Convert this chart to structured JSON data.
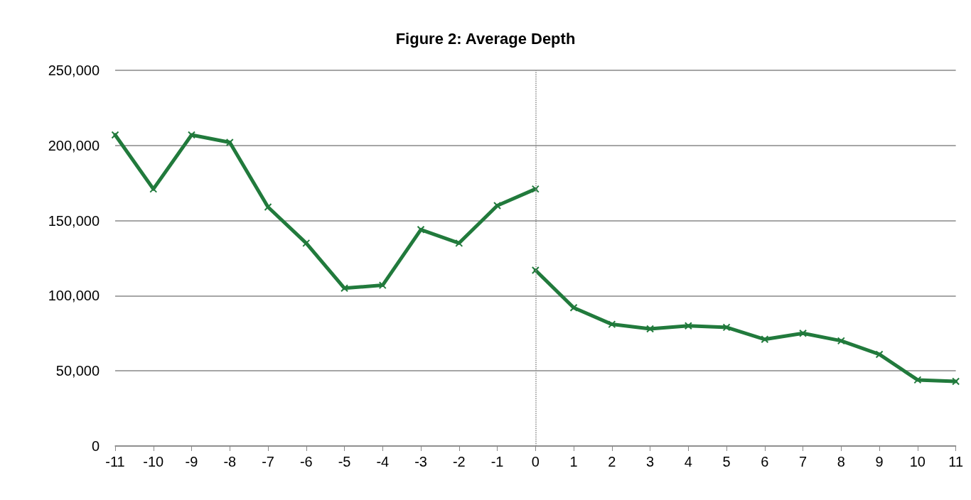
{
  "chart_data": {
    "type": "line",
    "title": "Figure 2: Average Depth",
    "series": [
      {
        "color": "#217a3c",
        "x": [
          -11,
          -10,
          -9,
          -8,
          -7,
          -6,
          -5,
          -4,
          -3,
          -2,
          -1,
          0
        ],
        "values": [
          207000,
          171000,
          207000,
          202000,
          159000,
          135000,
          105000,
          107000,
          144000,
          135000,
          160000,
          171000
        ]
      },
      {
        "color": "#217a3c",
        "x": [
          0,
          1,
          2,
          3,
          4,
          5,
          6,
          7,
          8,
          9,
          10,
          11
        ],
        "values": [
          117000,
          92000,
          81000,
          78000,
          80000,
          79000,
          71000,
          75000,
          70000,
          61000,
          44000,
          43000
        ]
      }
    ],
    "xlim": [
      -11,
      11
    ],
    "xticks": [
      -11,
      -10,
      -9,
      -8,
      -7,
      -6,
      -5,
      -4,
      -3,
      -2,
      -1,
      0,
      1,
      2,
      3,
      4,
      5,
      6,
      7,
      8,
      9,
      10,
      11
    ],
    "ylim": [
      0,
      250000
    ],
    "yticks": [
      0,
      {
        "value": 50000,
        "label": "50,000"
      },
      {
        "value": 100000,
        "label": "100,000"
      },
      {
        "value": 150000,
        "label": "150,000"
      },
      {
        "value": 200000,
        "label": "200,000"
      },
      {
        "value": 250000,
        "label": "250,000"
      }
    ],
    "ref_lines": [
      {
        "axis": "x",
        "value": 0,
        "color": "#8c8c8c",
        "line_style": "dotted"
      }
    ],
    "grid": "y",
    "marker": "cross",
    "line_style": "solid"
  }
}
